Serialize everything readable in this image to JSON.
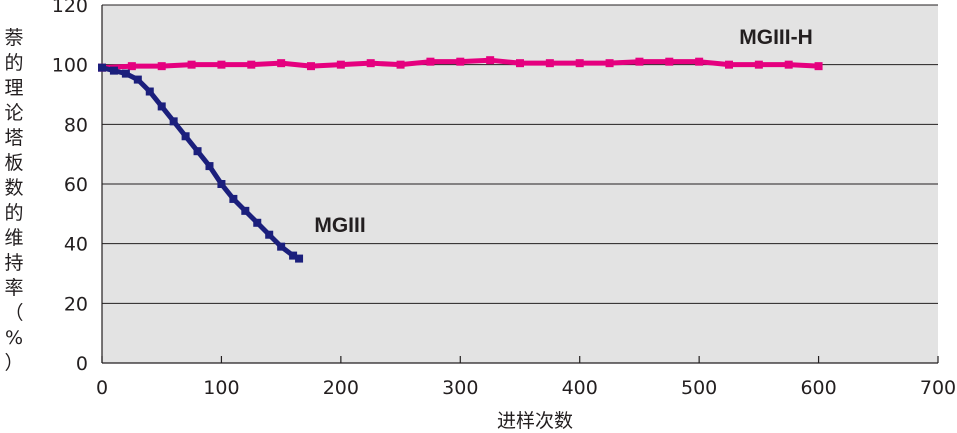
{
  "chart_data": {
    "type": "scatter",
    "xlabel": "进样次数",
    "ylabel": "萘的理论塔板数的维持率（%）",
    "xlim": [
      0,
      700
    ],
    "ylim": [
      0,
      120
    ],
    "xticks": [
      "0",
      "100",
      "200",
      "300",
      "400",
      "500",
      "600",
      "700"
    ],
    "yticks": [
      "0",
      "20",
      "40",
      "60",
      "80",
      "100",
      "120"
    ],
    "grid": "horizontal",
    "background": "#e3e3e3",
    "series": [
      {
        "name": "MGIII-H",
        "color": "#e5007f",
        "x": [
          0,
          25,
          50,
          75,
          100,
          125,
          150,
          175,
          200,
          225,
          250,
          275,
          300,
          325,
          350,
          375,
          400,
          425,
          450,
          475,
          500,
          525,
          550,
          575,
          600
        ],
        "y": [
          99,
          99.5,
          99.5,
          100,
          100,
          100,
          100.5,
          99.5,
          100,
          100.5,
          100,
          101,
          101,
          101.5,
          100.5,
          100.5,
          100.5,
          100.5,
          101,
          101,
          101,
          100,
          100,
          100,
          99.5
        ]
      },
      {
        "name": "MGIII",
        "color": "#1b1f7c",
        "x": [
          0,
          10,
          20,
          30,
          40,
          50,
          60,
          70,
          80,
          90,
          100,
          110,
          120,
          130,
          140,
          150,
          160,
          165
        ],
        "y": [
          99,
          98,
          97,
          95,
          91,
          86,
          81,
          76,
          71,
          66,
          60,
          55,
          51,
          47,
          43,
          39,
          36,
          35
        ]
      }
    ]
  }
}
